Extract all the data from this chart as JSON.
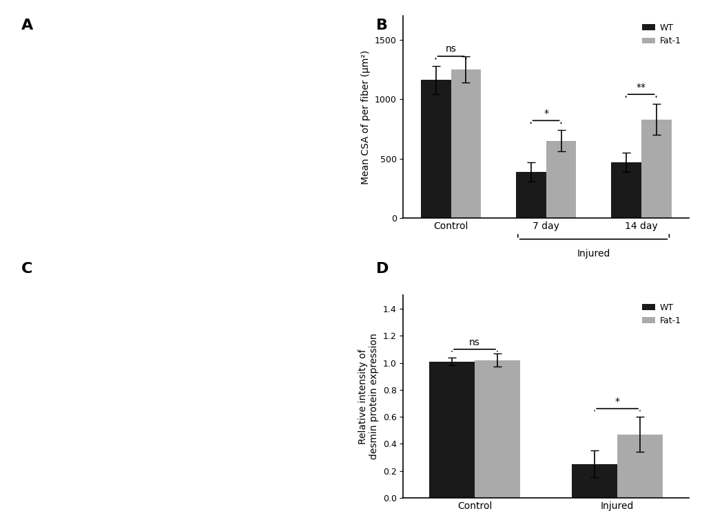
{
  "chart_B": {
    "groups": [
      "Control",
      "7 day",
      "14 day"
    ],
    "wt_values": [
      1160,
      390,
      470
    ],
    "fat1_values": [
      1250,
      650,
      830
    ],
    "wt_errors": [
      120,
      80,
      80
    ],
    "fat1_errors": [
      110,
      90,
      130
    ],
    "ylabel": "Mean CSA of per fiber (μm²)",
    "ylim": [
      0,
      1700
    ],
    "yticks": [
      0,
      500,
      1000,
      1500
    ],
    "significance": [
      "ns",
      "*",
      "**"
    ],
    "bar_width": 0.35,
    "wt_color": "#1a1a1a",
    "fat1_color": "#aaaaaa",
    "legend_labels": [
      "WT",
      "Fat-1"
    ]
  },
  "chart_D": {
    "groups": [
      "Control",
      "Injured"
    ],
    "wt_values": [
      1.01,
      0.25
    ],
    "fat1_values": [
      1.02,
      0.47
    ],
    "wt_errors": [
      0.03,
      0.1
    ],
    "fat1_errors": [
      0.05,
      0.13
    ],
    "ylabel": "Relative intensity of\ndesmin protein expression",
    "ylim": [
      0,
      1.5
    ],
    "yticks": [
      0.0,
      0.2,
      0.4,
      0.6,
      0.8,
      1.0,
      1.2,
      1.4
    ],
    "significance": [
      "ns",
      "*"
    ],
    "bar_width": 0.35,
    "wt_color": "#1a1a1a",
    "fat1_color": "#aaaaaa",
    "legend_labels": [
      "WT",
      "Fat-1"
    ]
  },
  "background_color": "#ffffff",
  "label_A": "A",
  "label_B": "B",
  "label_C": "C",
  "label_D": "D"
}
